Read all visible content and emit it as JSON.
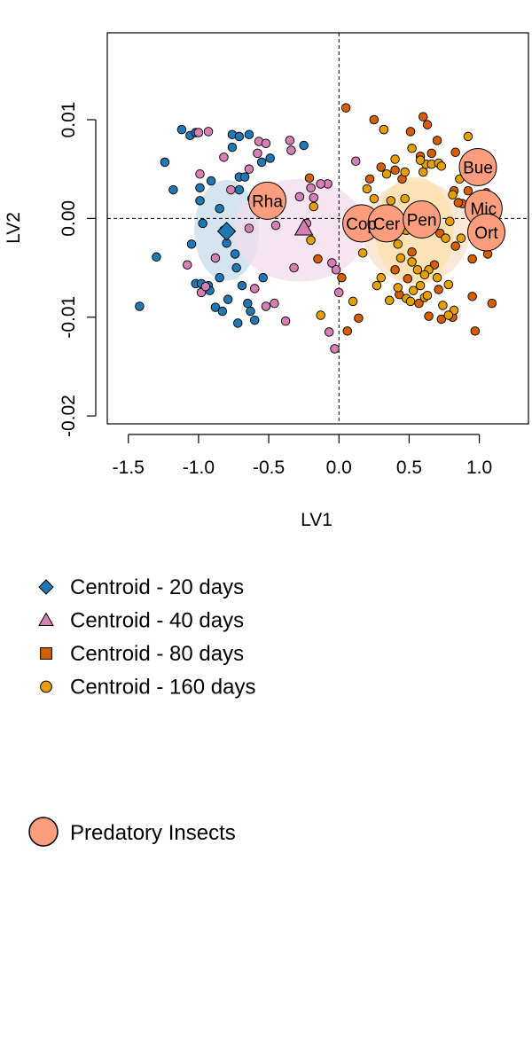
{
  "chart_data": {
    "type": "scatter",
    "xlabel": "LV1",
    "ylabel": "LV2",
    "xlim": [
      -1.65,
      1.35
    ],
    "ylim": [
      -0.0208,
      0.0188
    ],
    "xticks": [
      -1.5,
      -1.0,
      -0.5,
      0.0,
      0.5,
      1.0
    ],
    "xtick_labels": [
      "-1.5",
      "-1.0",
      "-0.5",
      "0.0",
      "0.5",
      "1.0"
    ],
    "yticks": [
      -0.02,
      -0.01,
      0.0,
      0.01
    ],
    "ytick_labels": [
      "-0.02",
      "-0.01",
      "0.00",
      "0.01"
    ],
    "reference_lines": {
      "x": 0,
      "y": 0,
      "style": "dashed"
    },
    "series": [
      {
        "name": "20 days",
        "color": "#1f78b4",
        "points": [
          [
            -1.42,
            -0.0089
          ],
          [
            -1.3,
            -0.0039
          ],
          [
            -1.24,
            0.0057
          ],
          [
            -1.12,
            0.009
          ],
          [
            -1.18,
            0.0029
          ],
          [
            -1.06,
            0.0084
          ],
          [
            -1.02,
            0.0087
          ],
          [
            -0.99,
            0.0031
          ],
          [
            -0.99,
            0.0018
          ],
          [
            -0.97,
            -0.0005
          ],
          [
            -1.05,
            -0.0026
          ],
          [
            -1.02,
            -0.0066
          ],
          [
            -0.98,
            -0.0066
          ],
          [
            -0.93,
            -0.0068
          ],
          [
            -0.91,
            0.0038
          ],
          [
            -0.85,
            0.001
          ],
          [
            -0.8,
            -0.0025
          ],
          [
            -0.76,
            0.0085
          ],
          [
            -0.71,
            0.0083
          ],
          [
            -0.64,
            0.0085
          ],
          [
            -0.76,
            0.0072
          ],
          [
            -0.71,
            0.0042
          ],
          [
            -0.67,
            0.0042
          ],
          [
            -0.71,
            0.0029
          ],
          [
            -0.62,
            0.002
          ],
          [
            -0.55,
            0.0057
          ],
          [
            -0.49,
            0.0061
          ],
          [
            -0.43,
            0.0015
          ],
          [
            -0.25,
            0.0074
          ],
          [
            -0.88,
            -0.009
          ],
          [
            -0.83,
            -0.0094
          ],
          [
            -0.79,
            -0.0082
          ],
          [
            -0.73,
            -0.005
          ],
          [
            -0.69,
            -0.0068
          ],
          [
            -0.65,
            -0.0086
          ],
          [
            -0.63,
            -0.0094
          ],
          [
            -0.6,
            -0.0103
          ],
          [
            -0.72,
            -0.0106
          ],
          [
            -0.54,
            -0.006
          ],
          [
            -0.85,
            -0.006
          ],
          [
            -0.92,
            -0.0073
          ],
          [
            -0.74,
            -0.0036
          ]
        ]
      },
      {
        "name": "40 days",
        "color": "#d77fb4",
        "points": [
          [
            -1.0,
            0.0087
          ],
          [
            -0.93,
            0.0088
          ],
          [
            -0.57,
            0.0078
          ],
          [
            -0.52,
            0.0076
          ],
          [
            -0.35,
            0.0079
          ],
          [
            -0.34,
            0.0069
          ],
          [
            -0.58,
            0.0066
          ],
          [
            -0.77,
            0.0029
          ],
          [
            -0.82,
            0.0062
          ],
          [
            -0.64,
            0.005
          ],
          [
            -0.99,
            0.0045
          ],
          [
            -0.82,
            -0.0012
          ],
          [
            -0.64,
            -0.001
          ],
          [
            -0.45,
            -0.0007
          ],
          [
            -0.44,
            0.0023
          ],
          [
            -0.28,
            0.0022
          ],
          [
            -0.18,
            0.0021
          ],
          [
            -0.08,
            0.0035
          ],
          [
            0.12,
            0.0058
          ],
          [
            -0.23,
            -0.0005
          ],
          [
            -1.08,
            -0.0047
          ],
          [
            -0.98,
            -0.0075
          ],
          [
            -0.95,
            -0.0069
          ],
          [
            -0.6,
            -0.0071
          ],
          [
            -0.52,
            -0.0089
          ],
          [
            -0.46,
            -0.0086
          ],
          [
            -0.38,
            -0.0104
          ],
          [
            -0.32,
            -0.005
          ],
          [
            -0.05,
            -0.0045
          ],
          [
            -0.02,
            -0.0052
          ],
          [
            0.0,
            -0.0075
          ],
          [
            -0.03,
            -0.0132
          ],
          [
            -0.07,
            -0.0115
          ],
          [
            -0.88,
            -0.004
          ],
          [
            -0.13,
            0.0035
          ],
          [
            -0.2,
            0.0031
          ]
        ]
      },
      {
        "name": "80 days",
        "color": "#d55e00",
        "points": [
          [
            0.05,
            0.0112
          ],
          [
            0.25,
            0.01
          ],
          [
            0.32,
            0.009
          ],
          [
            0.51,
            0.0088
          ],
          [
            0.6,
            0.0103
          ],
          [
            0.63,
            0.0095
          ],
          [
            0.7,
            0.0079
          ],
          [
            0.66,
            0.0066
          ],
          [
            0.83,
            0.0067
          ],
          [
            0.22,
            0.004
          ],
          [
            0.4,
            0.0049
          ],
          [
            0.58,
            0.0063
          ],
          [
            0.82,
            0.0028
          ],
          [
            0.92,
            0.0028
          ],
          [
            0.88,
            0.0015
          ],
          [
            0.98,
            0.0006
          ],
          [
            0.72,
            -0.0015
          ],
          [
            0.83,
            -0.0028
          ],
          [
            0.95,
            -0.0041
          ],
          [
            1.06,
            -0.0036
          ],
          [
            0.52,
            -0.0034
          ],
          [
            0.4,
            -0.0052
          ],
          [
            0.49,
            -0.0061
          ],
          [
            0.68,
            -0.0047
          ],
          [
            0.71,
            -0.0072
          ],
          [
            0.95,
            -0.0079
          ],
          [
            1.09,
            -0.0086
          ],
          [
            0.81,
            -0.01
          ],
          [
            0.73,
            -0.0102
          ],
          [
            0.97,
            -0.0114
          ],
          [
            0.14,
            -0.0101
          ],
          [
            0.06,
            -0.0114
          ],
          [
            -0.15,
            -0.0041
          ],
          [
            0.02,
            -0.006
          ],
          [
            0.43,
            -0.0077
          ],
          [
            0.57,
            -0.0086
          ],
          [
            0.64,
            -0.0099
          ],
          [
            1.05,
            0.0026
          ],
          [
            0.3,
            0.0052
          ],
          [
            0.45,
            0.004
          ],
          [
            -0.21,
            0.0041
          ],
          [
            0.85,
            0.0016
          ]
        ]
      },
      {
        "name": "160 days",
        "color": "#e69f00",
        "points": [
          [
            0.32,
            0.009
          ],
          [
            0.52,
            0.0071
          ],
          [
            0.47,
            0.0047
          ],
          [
            0.34,
            0.0045
          ],
          [
            0.4,
            0.006
          ],
          [
            0.6,
            0.0047
          ],
          [
            0.62,
            0.0055
          ],
          [
            0.66,
            0.0055
          ],
          [
            0.71,
            0.0056
          ],
          [
            0.73,
            0.0053
          ],
          [
            0.92,
            0.0083
          ],
          [
            0.86,
            0.004
          ],
          [
            0.98,
            0.004
          ],
          [
            0.2,
            0.003
          ],
          [
            0.47,
            0.002
          ],
          [
            0.25,
            0.002
          ],
          [
            0.37,
            0.0018
          ],
          [
            0.81,
            0.0024
          ],
          [
            0.79,
            -0.0003
          ],
          [
            0.68,
            -0.0005
          ],
          [
            0.87,
            -0.002
          ],
          [
            0.76,
            -0.002
          ],
          [
            0.42,
            -0.0026
          ],
          [
            0.44,
            -0.004
          ],
          [
            0.52,
            -0.0044
          ],
          [
            0.56,
            -0.0052
          ],
          [
            0.64,
            -0.0052
          ],
          [
            0.61,
            -0.0057
          ],
          [
            0.7,
            -0.006
          ],
          [
            0.78,
            -0.0067
          ],
          [
            0.3,
            -0.006
          ],
          [
            0.27,
            -0.0068
          ],
          [
            0.42,
            -0.007
          ],
          [
            0.58,
            -0.0068
          ],
          [
            0.53,
            -0.0073
          ],
          [
            0.48,
            -0.0081
          ],
          [
            0.36,
            -0.0083
          ],
          [
            0.61,
            -0.008
          ],
          [
            0.74,
            -0.0088
          ],
          [
            0.82,
            -0.0093
          ],
          [
            0.78,
            -0.0098
          ],
          [
            0.63,
            -0.0078
          ],
          [
            0.1,
            -0.0084
          ],
          [
            -0.13,
            -0.0098
          ],
          [
            -0.2,
            -0.0022
          ],
          [
            -0.18,
            0.0012
          ],
          [
            0.17,
            -0.0035
          ],
          [
            0.51,
            -0.0084
          ],
          [
            0.58,
            0.0059
          ]
        ]
      }
    ],
    "ellipses": [
      {
        "series": "20 days",
        "cx": -0.8,
        "cy": -0.0012,
        "rx": 0.23,
        "ry": 0.0051,
        "color": "#c6dcec"
      },
      {
        "series": "40 days",
        "cx": -0.28,
        "cy": -0.0012,
        "rx": 0.47,
        "ry": 0.0052,
        "color": "#f0dceb"
      },
      {
        "series": "80 days",
        "cx": 0.55,
        "cy": -0.0014,
        "rx": 0.38,
        "ry": 0.0052,
        "color": "#f8dfc8"
      },
      {
        "series": "160 days",
        "cx": 0.54,
        "cy": -0.0012,
        "rx": 0.28,
        "ry": 0.0054,
        "color": "#fbe1ab"
      }
    ],
    "centroids": [
      {
        "series": "20 days",
        "x": -0.8,
        "y": -0.0013,
        "shape": "diamond",
        "color": "#1f78b4"
      },
      {
        "series": "40 days",
        "x": -0.25,
        "y": -0.001,
        "shape": "triangle",
        "color": "#d77fb4"
      },
      {
        "series": "80 days",
        "x": 0.6,
        "y": -0.0004,
        "shape": "square",
        "color": "#d55e00"
      },
      {
        "series": "160 days",
        "x": 0.48,
        "y": -0.0009,
        "shape": "circle",
        "color": "#e69f00"
      }
    ],
    "insects": [
      {
        "label": "Rha",
        "x": -0.51,
        "y": 0.0018
      },
      {
        "label": "Bue",
        "x": 0.99,
        "y": 0.0052
      },
      {
        "label": "Mic",
        "x": 1.03,
        "y": 0.001
      },
      {
        "label": "Ort",
        "x": 1.05,
        "y": -0.0014
      },
      {
        "label": "Cop",
        "x": 0.16,
        "y": -0.0005
      },
      {
        "label": "Cer",
        "x": 0.34,
        "y": -0.0005
      },
      {
        "label": "Pen",
        "x": 0.59,
        "y": -0.0001
      }
    ],
    "insect_color": "#fc9e7e",
    "legend": [
      {
        "label": "Centroid - 20 days",
        "shape": "diamond",
        "color": "#1f78b4"
      },
      {
        "label": "Centroid - 40 days",
        "shape": "triangle",
        "color": "#d77fb4"
      },
      {
        "label": "Centroid - 80 days",
        "shape": "square",
        "color": "#d55e00"
      },
      {
        "label": "Centroid - 160 days",
        "shape": "circle",
        "color": "#e69f00"
      }
    ],
    "legend2": [
      {
        "label": "Predatory Insects",
        "shape": "big-circle",
        "color": "#fc9e7e"
      }
    ]
  }
}
